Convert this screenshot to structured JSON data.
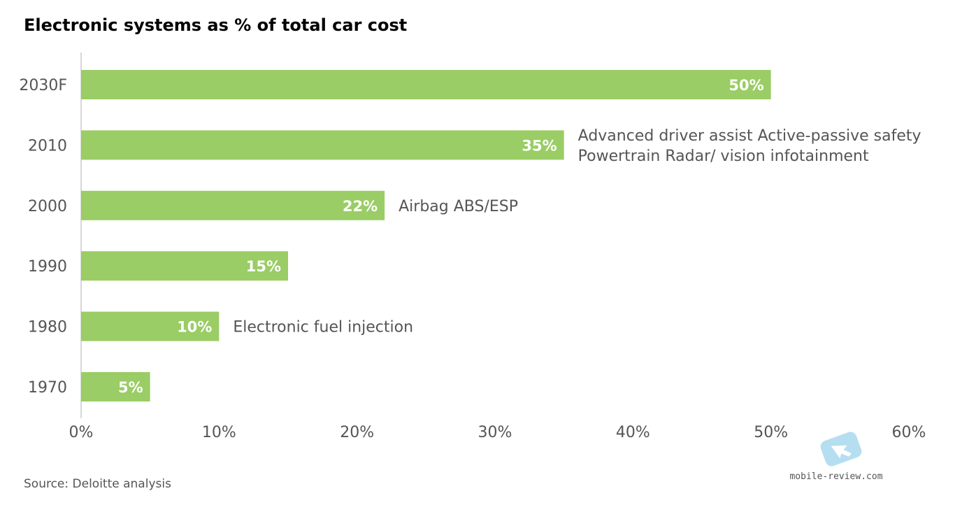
{
  "chart_data": {
    "type": "bar",
    "orientation": "horizontal",
    "title": "Electronic systems as % of total car cost",
    "categories": [
      "2030F",
      "2010",
      "2000",
      "1990",
      "1980",
      "1970"
    ],
    "values": [
      50,
      35,
      22,
      15,
      10,
      5
    ],
    "data_labels": [
      "50%",
      "35%",
      "22%",
      "15%",
      "10%",
      "5%"
    ],
    "annotations": [
      {
        "category": "2010",
        "lines": [
          "Advanced driver assist Active-passive safety",
          "Powertrain Radar/ vision infotainment"
        ]
      },
      {
        "category": "2000",
        "lines": [
          "Airbag ABS/ESP"
        ]
      },
      {
        "category": "1980",
        "lines": [
          "Electronic fuel injection"
        ]
      }
    ],
    "xlim": [
      0,
      60
    ],
    "x_ticks": [
      0,
      10,
      20,
      30,
      40,
      50,
      60
    ],
    "x_tick_labels": [
      "0%",
      "10%",
      "20%",
      "30%",
      "40%",
      "50%",
      "60%"
    ],
    "xlabel": "",
    "ylabel": "",
    "grid": false,
    "bar_color": "#9acd65",
    "source": "Source: Deloitte analysis"
  },
  "watermark": {
    "text": "mobile-review.com",
    "icon": "arrow-cursor-icon"
  }
}
